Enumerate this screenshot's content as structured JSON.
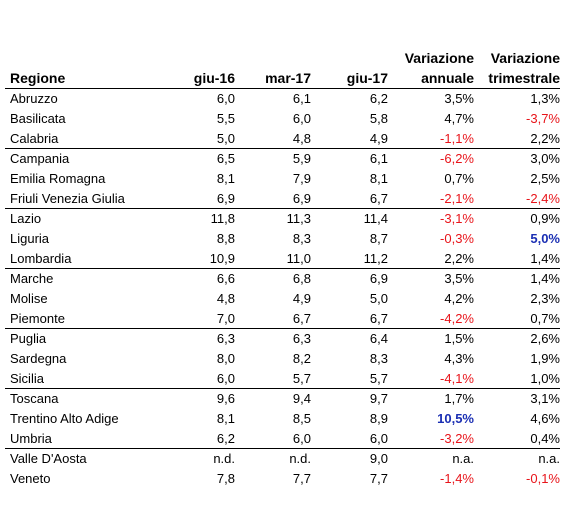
{
  "headers": {
    "region": "Regione",
    "c1": "giu-16",
    "c2": "mar-17",
    "c3": "giu-17",
    "var_annual_1": "Variazione",
    "var_annual_2": "annuale",
    "var_quarter_1": "Variazione",
    "var_quarter_2": "trimestrale"
  },
  "rows": [
    {
      "region": "Abruzzo",
      "v1": "6,0",
      "v2": "6,1",
      "v3": "6,2",
      "ya": "3,5%",
      "qa": "1,3%",
      "ya_neg": false,
      "qa_neg": false,
      "group_end": false
    },
    {
      "region": "Basilicata",
      "v1": "5,5",
      "v2": "6,0",
      "v3": "5,8",
      "ya": "4,7%",
      "qa": "-3,7%",
      "ya_neg": false,
      "qa_neg": true,
      "group_end": false
    },
    {
      "region": "Calabria",
      "v1": "5,0",
      "v2": "4,8",
      "v3": "4,9",
      "ya": "-1,1%",
      "qa": "2,2%",
      "ya_neg": true,
      "qa_neg": false,
      "group_end": true
    },
    {
      "region": "Campania",
      "v1": "6,5",
      "v2": "5,9",
      "v3": "6,1",
      "ya": "-6,2%",
      "qa": "3,0%",
      "ya_neg": true,
      "qa_neg": false,
      "group_end": false
    },
    {
      "region": "Emilia Romagna",
      "v1": "8,1",
      "v2": "7,9",
      "v3": "8,1",
      "ya": "0,7%",
      "qa": "2,5%",
      "ya_neg": false,
      "qa_neg": false,
      "group_end": false
    },
    {
      "region": "Friuli Venezia Giulia",
      "v1": "6,9",
      "v2": "6,9",
      "v3": "6,7",
      "ya": "-2,1%",
      "qa": "-2,4%",
      "ya_neg": true,
      "qa_neg": true,
      "group_end": true
    },
    {
      "region": "Lazio",
      "v1": "11,8",
      "v2": "11,3",
      "v3": "11,4",
      "ya": "-3,1%",
      "qa": "0,9%",
      "ya_neg": true,
      "qa_neg": false,
      "group_end": false
    },
    {
      "region": "Liguria",
      "v1": "8,8",
      "v2": "8,3",
      "v3": "8,7",
      "ya": "-0,3%",
      "qa": "5,0%",
      "ya_neg": true,
      "qa_neg": false,
      "qa_hi": true,
      "group_end": false
    },
    {
      "region": "Lombardia",
      "v1": "10,9",
      "v2": "11,0",
      "v3": "11,2",
      "ya": "2,2%",
      "qa": "1,4%",
      "ya_neg": false,
      "qa_neg": false,
      "group_end": true
    },
    {
      "region": "Marche",
      "v1": "6,6",
      "v2": "6,8",
      "v3": "6,9",
      "ya": "3,5%",
      "qa": "1,4%",
      "ya_neg": false,
      "qa_neg": false,
      "group_end": false
    },
    {
      "region": "Molise",
      "v1": "4,8",
      "v2": "4,9",
      "v3": "5,0",
      "ya": "4,2%",
      "qa": "2,3%",
      "ya_neg": false,
      "qa_neg": false,
      "group_end": false
    },
    {
      "region": "Piemonte",
      "v1": "7,0",
      "v2": "6,7",
      "v3": "6,7",
      "ya": "-4,2%",
      "qa": "0,7%",
      "ya_neg": true,
      "qa_neg": false,
      "group_end": true
    },
    {
      "region": "Puglia",
      "v1": "6,3",
      "v2": "6,3",
      "v3": "6,4",
      "ya": "1,5%",
      "qa": "2,6%",
      "ya_neg": false,
      "qa_neg": false,
      "group_end": false
    },
    {
      "region": "Sardegna",
      "v1": "8,0",
      "v2": "8,2",
      "v3": "8,3",
      "ya": "4,3%",
      "qa": "1,9%",
      "ya_neg": false,
      "qa_neg": false,
      "group_end": false
    },
    {
      "region": "Sicilia",
      "v1": "6,0",
      "v2": "5,7",
      "v3": "5,7",
      "ya": "-4,1%",
      "qa": "1,0%",
      "ya_neg": true,
      "qa_neg": false,
      "group_end": true
    },
    {
      "region": "Toscana",
      "v1": "9,6",
      "v2": "9,4",
      "v3": "9,7",
      "ya": "1,7%",
      "qa": "3,1%",
      "ya_neg": false,
      "qa_neg": false,
      "group_end": false
    },
    {
      "region": "Trentino Alto Adige",
      "v1": "8,1",
      "v2": "8,5",
      "v3": "8,9",
      "ya": "10,5%",
      "qa": "4,6%",
      "ya_neg": false,
      "ya_hi": true,
      "qa_neg": false,
      "group_end": false
    },
    {
      "region": "Umbria",
      "v1": "6,2",
      "v2": "6,0",
      "v3": "6,0",
      "ya": "-3,2%",
      "qa": "0,4%",
      "ya_neg": true,
      "qa_neg": false,
      "group_end": true
    },
    {
      "region": "Valle D'Aosta",
      "v1": "n.d.",
      "v2": "n.d.",
      "v3": "9,0",
      "ya": "n.a.",
      "qa": "n.a.",
      "ya_neg": false,
      "qa_neg": false,
      "group_end": false
    },
    {
      "region": "Veneto",
      "v1": "7,8",
      "v2": "7,7",
      "v3": "7,7",
      "ya": "-1,4%",
      "qa": "-0,1%",
      "ya_neg": true,
      "qa_neg": true,
      "group_end": false
    }
  ]
}
